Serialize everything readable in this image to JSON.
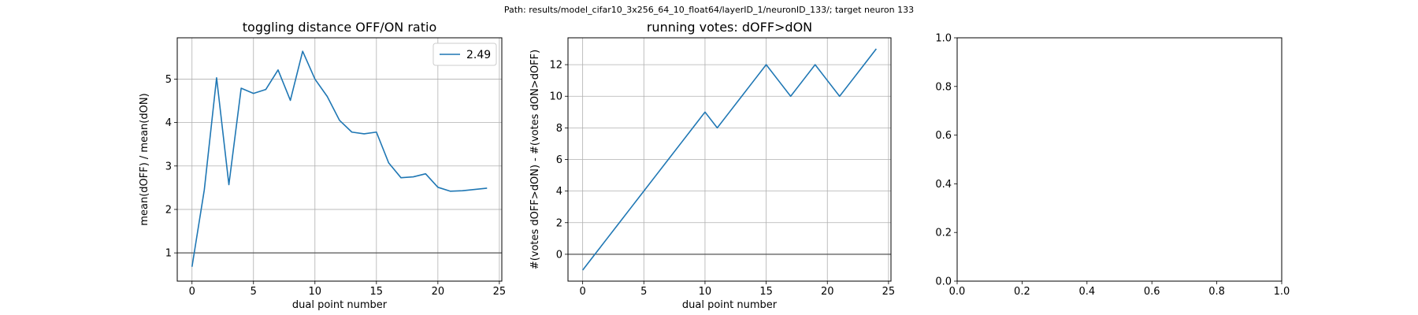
{
  "suptitle": "Path: results/model_cifar10_3x256_64_10_float64/layerID_1/neuronID_133/; target neuron 133",
  "chart_data": [
    {
      "type": "line",
      "title": "toggling distance OFF/ON ratio",
      "xlabel": "dual point number",
      "ylabel": "mean(dOFF) / mean(dON)",
      "xlim": [
        -1.2,
        25.2
      ],
      "ylim": [
        0.35,
        5.95
      ],
      "xticks": [
        0,
        5,
        10,
        15,
        20,
        25
      ],
      "yticks": [
        1,
        2,
        3,
        4,
        5
      ],
      "grid": true,
      "hline": 1,
      "legend": {
        "placement": "top-right",
        "entries": [
          "2.49"
        ]
      },
      "series": [
        {
          "name": "2.49",
          "color": "#1f77b4",
          "x": [
            0,
            1,
            2,
            3,
            4,
            5,
            6,
            7,
            8,
            9,
            10,
            11,
            12,
            13,
            14,
            15,
            16,
            17,
            18,
            19,
            20,
            21,
            22,
            23,
            24
          ],
          "y": [
            0.68,
            2.45,
            5.03,
            2.57,
            4.79,
            4.67,
            4.76,
            5.21,
            4.51,
            5.64,
            5.0,
            4.6,
            4.05,
            3.78,
            3.74,
            3.78,
            3.07,
            2.73,
            2.75,
            2.82,
            2.51,
            2.42,
            2.43,
            2.46,
            2.49
          ]
        }
      ]
    },
    {
      "type": "line",
      "title": "running votes: dOFF>dON",
      "xlabel": "dual point number",
      "ylabel": "#(votes dOFF>dON) - #(votes dON>dOFF)",
      "xlim": [
        -1.2,
        25.2
      ],
      "ylim": [
        -1.7,
        13.7
      ],
      "xticks": [
        0,
        5,
        10,
        15,
        20,
        25
      ],
      "yticks": [
        0,
        2,
        4,
        6,
        8,
        10,
        12
      ],
      "grid": true,
      "hline": 0,
      "series": [
        {
          "color": "#1f77b4",
          "x": [
            0,
            1,
            2,
            3,
            4,
            5,
            6,
            7,
            8,
            9,
            10,
            11,
            12,
            13,
            14,
            15,
            16,
            17,
            18,
            19,
            20,
            21,
            22,
            23,
            24
          ],
          "y": [
            -1,
            0,
            1,
            2,
            3,
            4,
            5,
            6,
            7,
            8,
            9,
            8,
            9,
            10,
            11,
            12,
            11,
            10,
            11,
            12,
            11,
            10,
            11,
            12,
            13
          ]
        }
      ]
    },
    {
      "type": "line",
      "title": "",
      "xlabel": "",
      "ylabel": "",
      "xlim": [
        0,
        1
      ],
      "ylim": [
        0,
        1
      ],
      "xticks": [
        0.0,
        0.2,
        0.4,
        0.6,
        0.8,
        1.0
      ],
      "yticks": [
        0.0,
        0.2,
        0.4,
        0.6,
        0.8,
        1.0
      ],
      "grid": false,
      "series": []
    }
  ]
}
